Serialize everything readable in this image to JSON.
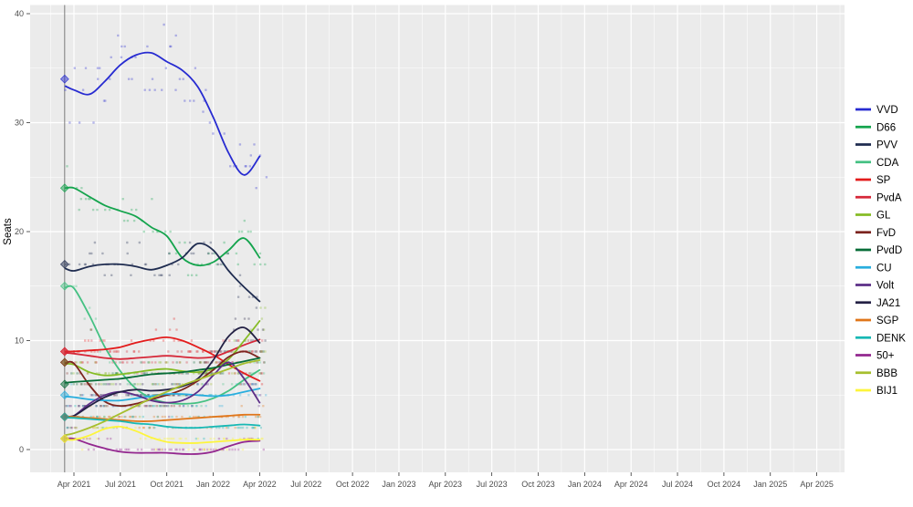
{
  "figure": {
    "y_axis_title": "Seats",
    "panel_bg": "#ebebeb",
    "grid_color": "#ffffff",
    "axis_text_color": "#4d4d4d",
    "election_line_color": "#6e6e6e",
    "legend_text_color": "#000000"
  },
  "chart_data": {
    "type": "line",
    "title": "",
    "xlabel": "",
    "ylabel": "Seats",
    "ylim": [
      -2,
      41
    ],
    "y_ticks": [
      0,
      10,
      20,
      30,
      40
    ],
    "y_minor_ticks": [
      5,
      15,
      25,
      35
    ],
    "x_tick_labels": [
      "Apr 2021",
      "Jul 2021",
      "Oct 2021",
      "Jan 2022",
      "Apr 2022",
      "Jul 2022",
      "Oct 2022",
      "Jan 2023",
      "Apr 2023",
      "Jul 2023",
      "Oct 2023",
      "Jan 2024",
      "Apr 2024",
      "Jul 2024",
      "Oct 2024",
      "Jan 2025",
      "Apr 2025"
    ],
    "grid": true,
    "legend_position": "right",
    "election_marker_label": "Mar 2021 election",
    "sample_months": [
      "Apr 2021",
      "May 2021",
      "Jun 2021",
      "Jul 2021",
      "Aug 2021",
      "Sep 2021",
      "Oct 2021",
      "Nov 2021",
      "Dec 2021",
      "Jan 2022",
      "Feb 2022",
      "Mar 2022",
      "Apr 2022"
    ],
    "series": [
      {
        "name": "VVD",
        "color": "#272bd1",
        "election": 34,
        "values": [
          33,
          32.6,
          33.8,
          35.3,
          36.2,
          36.4,
          35.6,
          34.8,
          33.3,
          30.5,
          27.2,
          25.2,
          26.9
        ]
      },
      {
        "name": "D66",
        "color": "#14a44d",
        "election": 24,
        "values": [
          24,
          23.2,
          22.4,
          21.9,
          21.4,
          20.4,
          19.6,
          17.6,
          16.9,
          17.2,
          18.3,
          19.4,
          17.6
        ]
      },
      {
        "name": "PVV",
        "color": "#1f2c50",
        "election": 17,
        "values": [
          16.4,
          16.8,
          17,
          17,
          16.8,
          16.5,
          16.9,
          17.6,
          18.9,
          18.3,
          16.4,
          14.9,
          13.6
        ]
      },
      {
        "name": "CDA",
        "color": "#45c183",
        "election": 15,
        "values": [
          14.8,
          12.3,
          9.4,
          7.2,
          5.6,
          4.7,
          4.3,
          4.2,
          4.3,
          4.7,
          5.4,
          6.4,
          7.3
        ]
      },
      {
        "name": "SP",
        "color": "#e31c1c",
        "election": 9,
        "values": [
          9,
          9.1,
          9.2,
          9.4,
          9.8,
          10.1,
          10.3,
          10,
          9.4,
          8.7,
          7.8,
          7,
          6.3
        ]
      },
      {
        "name": "PvdA",
        "color": "#d62839",
        "election": 9,
        "values": [
          8.8,
          8.6,
          8.4,
          8.3,
          8.4,
          8.5,
          8.6,
          8.5,
          8.4,
          8.5,
          9,
          9.6,
          10.1
        ]
      },
      {
        "name": "GL",
        "color": "#86bc25",
        "election": 8,
        "values": [
          7.8,
          7.1,
          6.8,
          6.9,
          7.1,
          7.3,
          7.4,
          7.2,
          7.1,
          7.4,
          8.3,
          10,
          11.8
        ]
      },
      {
        "name": "FvD",
        "color": "#7c241f",
        "election": 8,
        "values": [
          7.9,
          5.9,
          4.4,
          4,
          4.2,
          4.6,
          5,
          5.5,
          6.3,
          7.3,
          8.5,
          9,
          8.4
        ]
      },
      {
        "name": "PvdD",
        "color": "#086d38",
        "election": 6,
        "values": [
          6.2,
          6.3,
          6.4,
          6.5,
          6.7,
          6.9,
          7,
          7.1,
          7.3,
          7.5,
          7.8,
          8.1,
          8.4
        ]
      },
      {
        "name": "CU",
        "color": "#29aede",
        "election": 5,
        "values": [
          4.8,
          4.6,
          4.5,
          4.5,
          4.7,
          4.9,
          5.1,
          5.1,
          5,
          4.9,
          5,
          5.3,
          5.6
        ]
      },
      {
        "name": "Volt",
        "color": "#5c2f87",
        "election": 3,
        "values": [
          3.1,
          4.2,
          5,
          5.3,
          5,
          4.5,
          4.3,
          4.5,
          5.3,
          6.8,
          8,
          6.5,
          4.3
        ]
      },
      {
        "name": "JA21",
        "color": "#242145",
        "election": 3,
        "values": [
          3.1,
          4,
          4.8,
          5.3,
          5.5,
          5.4,
          5.5,
          5.8,
          6.5,
          8.2,
          10.4,
          11.2,
          9.8
        ]
      },
      {
        "name": "SGP",
        "color": "#e0761a",
        "election": 3,
        "values": [
          3,
          2.9,
          2.8,
          2.7,
          2.6,
          2.6,
          2.7,
          2.8,
          2.9,
          3,
          3.1,
          3.2,
          3.2
        ]
      },
      {
        "name": "DENK",
        "color": "#17b8b4",
        "election": 3,
        "values": [
          2.9,
          2.8,
          2.7,
          2.6,
          2.4,
          2.3,
          2.1,
          2,
          2,
          2.1,
          2.2,
          2.3,
          2.2
        ]
      },
      {
        "name": "50+",
        "color": "#93278f",
        "election": 1,
        "values": [
          1,
          0.5,
          0.1,
          -0.2,
          -0.3,
          -0.3,
          -0.3,
          -0.4,
          -0.4,
          -0.2,
          0.3,
          0.7,
          0.8
        ]
      },
      {
        "name": "BBB",
        "color": "#a6bf2e",
        "election": 1,
        "values": [
          1.5,
          2,
          2.6,
          3.3,
          4,
          4.7,
          5.3,
          5.9,
          6.4,
          6.9,
          7.4,
          7.9,
          8.2
        ]
      },
      {
        "name": "BIJ1",
        "color": "#fdf53c",
        "election": 1,
        "values": [
          0.9,
          1.3,
          1.9,
          2.1,
          1.7,
          1.1,
          0.7,
          0.6,
          0.6,
          0.7,
          0.8,
          0.9,
          0.9
        ]
      }
    ]
  }
}
